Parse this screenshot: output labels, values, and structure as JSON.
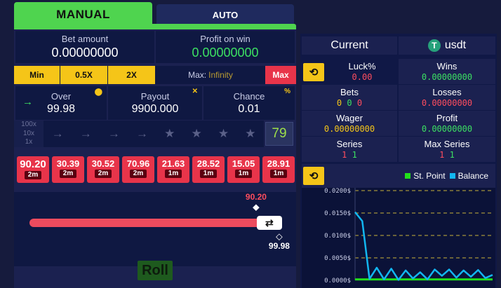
{
  "tabs": {
    "manual": "MANUAL",
    "auto": "AUTO"
  },
  "bet": {
    "label": "Bet amount",
    "value": "0.00000000"
  },
  "profit": {
    "label": "Profit on win",
    "value": "0.00000000"
  },
  "bet_buttons": {
    "min": "Min",
    "half": "0.5X",
    "double": "2X",
    "max_label": "Max:",
    "max_value": "Infinity",
    "max": "Max"
  },
  "over": {
    "label": "Over",
    "value": "99.98"
  },
  "payout": {
    "label": "Payout",
    "value": "9900.000"
  },
  "chance": {
    "label": "Chance",
    "value": "0.01"
  },
  "streak": {
    "levels": [
      "100x",
      "10x",
      "1x"
    ],
    "score": "79"
  },
  "history": [
    {
      "mult": "90.20",
      "time": "2m"
    },
    {
      "mult": "30.39",
      "time": "2m"
    },
    {
      "mult": "30.52",
      "time": "2m"
    },
    {
      "mult": "70.96",
      "time": "2m"
    },
    {
      "mult": "21.63",
      "time": "1m"
    },
    {
      "mult": "28.52",
      "time": "1m"
    },
    {
      "mult": "15.05",
      "time": "1m"
    },
    {
      "mult": "28.91",
      "time": "1m"
    }
  ],
  "slider": {
    "result": "90.20",
    "target": "99.98",
    "result_fraction": 0.902,
    "target_fraction": 0.9998
  },
  "roll": "Roll",
  "right": {
    "current": "Current",
    "currency": "usdt",
    "stats": {
      "luck_label": "Luck%",
      "luck": "0.00",
      "wins_label": "Wins",
      "wins": "0.00000000",
      "bets_label": "Bets",
      "bets": [
        "0",
        "0",
        "0"
      ],
      "losses_label": "Losses",
      "losses": "0.00000000",
      "wager_label": "Wager",
      "wager": "0.00000000",
      "profit_label": "Profit",
      "profit": "0.00000000",
      "series_label": "Series",
      "series": [
        "1",
        "1"
      ],
      "max_series_label": "Max Series",
      "max_series": [
        "1",
        "1"
      ]
    },
    "legend": {
      "st_point": "St. Point",
      "balance": "Balance"
    },
    "colors": {
      "st_point": "#22e01b",
      "balance": "#12b6f0"
    }
  },
  "chart_data": {
    "type": "line",
    "ytick_labels": [
      "0.0000$",
      "0.0050$",
      "0.0100$",
      "0.0150$",
      "0.0200$"
    ],
    "ylim": [
      0,
      0.02
    ],
    "series": [
      {
        "name": "St. Point",
        "values": [
          0.0002,
          0.0002,
          0.0002,
          0.0002,
          0.0002,
          0.0002,
          0.0002,
          0.0002,
          0.0002,
          0.0002,
          0.0002,
          0.0002,
          0.0002,
          0.0002,
          0.0002,
          0.0002,
          0.0002,
          0.0002,
          0.0002,
          0.0002
        ]
      },
      {
        "name": "Balance",
        "values": [
          0.0152,
          0.0132,
          0.0003,
          0.0028,
          0.0002,
          0.0026,
          0.0001,
          0.0022,
          0.0004,
          0.0018,
          0.0002,
          0.0024,
          0.001,
          0.0024,
          0.0006,
          0.0022,
          0.0008,
          0.0023,
          0.0005,
          0.0012
        ]
      }
    ]
  }
}
